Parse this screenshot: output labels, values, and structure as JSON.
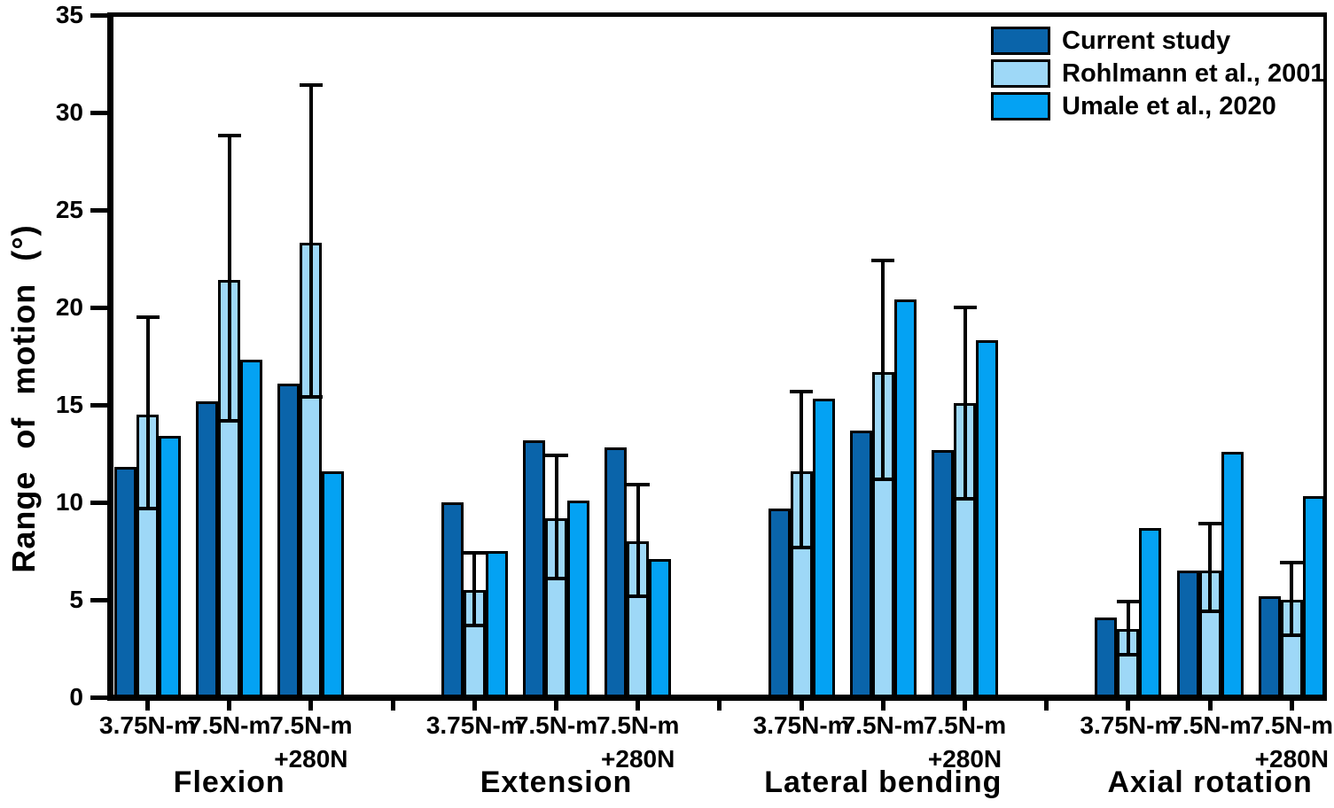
{
  "chart_data": {
    "type": "bar",
    "title": "",
    "ylabel": "Range of motion (°)",
    "xlabel": "",
    "ylim": [
      0,
      35
    ],
    "yticks": [
      0,
      5,
      10,
      15,
      20,
      25,
      30,
      35
    ],
    "grid": false,
    "legend_position": "top-right",
    "groups": [
      "Flexion",
      "Extension",
      "Lateral bending",
      "Axial rotation"
    ],
    "subcategories": [
      {
        "label": "3.75N-m",
        "sublabel": ""
      },
      {
        "label": "7.5N-m",
        "sublabel": ""
      },
      {
        "label": "7.5N-m",
        "sublabel": "+280N"
      }
    ],
    "series": [
      {
        "name": "Current study",
        "color": "#0a64aa",
        "values": [
          [
            11.8,
            15.2,
            16.1
          ],
          [
            10.0,
            13.2,
            12.8
          ],
          [
            9.7,
            13.7,
            12.7
          ],
          [
            4.1,
            6.5,
            5.2
          ]
        ]
      },
      {
        "name": "Rohlmann et al., 2001",
        "color": "#9ed8f7",
        "values": [
          [
            14.5,
            21.4,
            23.3
          ],
          [
            5.5,
            9.2,
            8.0
          ],
          [
            11.6,
            16.7,
            15.1
          ],
          [
            3.5,
            6.5,
            5.0
          ]
        ],
        "error_low": [
          [
            9.7,
            14.2,
            15.4
          ],
          [
            3.7,
            6.1,
            5.2
          ],
          [
            7.7,
            11.2,
            10.2
          ],
          [
            2.2,
            4.4,
            3.2
          ]
        ],
        "error_high": [
          [
            19.5,
            28.8,
            31.4
          ],
          [
            7.4,
            12.4,
            10.9
          ],
          [
            15.7,
            22.4,
            20.0
          ],
          [
            4.9,
            8.9,
            6.9
          ]
        ]
      },
      {
        "name": "Umale et al., 2020",
        "color": "#04a2f3",
        "values": [
          [
            13.4,
            17.3,
            11.6
          ],
          [
            7.5,
            10.1,
            7.1
          ],
          [
            15.3,
            20.4,
            18.3
          ],
          [
            8.7,
            12.6,
            10.3
          ]
        ]
      }
    ],
    "bar_edge_color": "#000000",
    "error_bar_color": "#000000"
  }
}
